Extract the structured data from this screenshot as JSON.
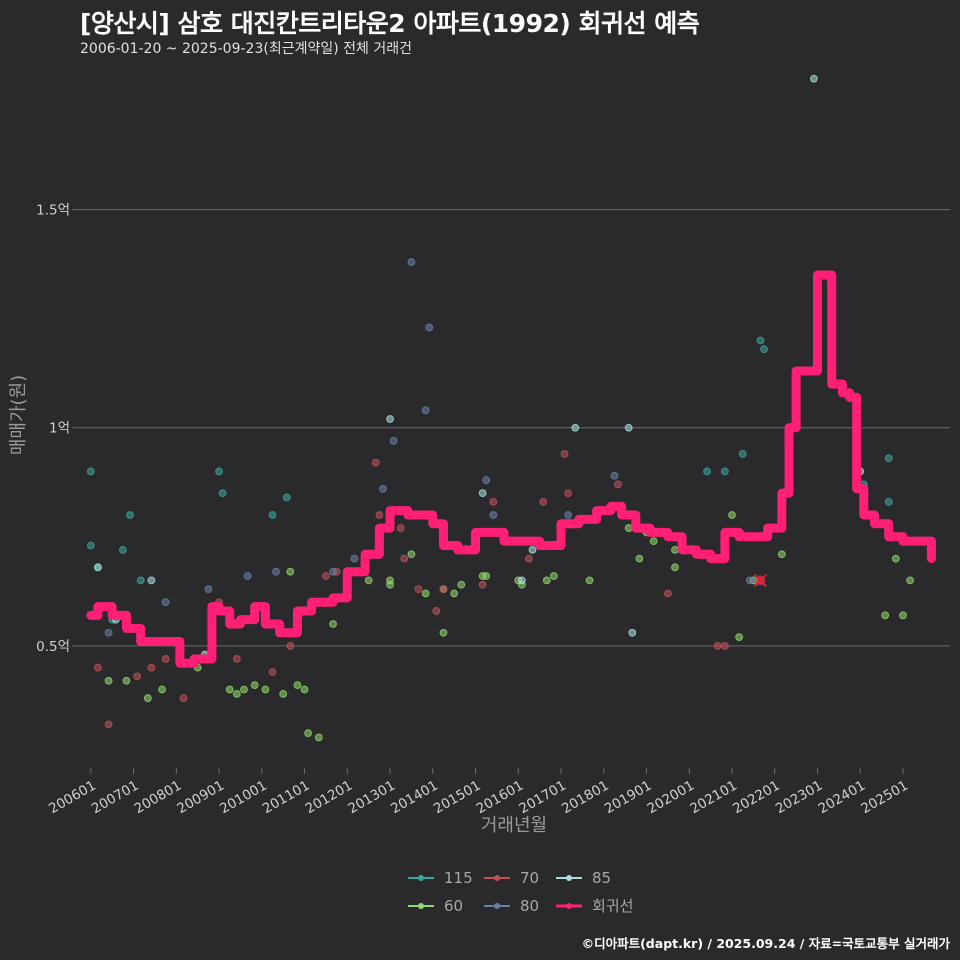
{
  "header": {
    "title": "[양산시] 삼호 대진칸트리타운2 아파트(1992) 회귀선 예측",
    "subtitle": "2006-01-20 ~ 2025-09-23(최근계약일) 전체 거래건"
  },
  "footer": {
    "credit": "©디아파트(dapt.kr) / 2025.09.24 / 자료=국토교통부 실거래가"
  },
  "colors": {
    "background": "#2a2a2c",
    "grid": "#6a6a6a",
    "regression": "#ff1f74",
    "115": "#3aa6a0",
    "60": "#8fd86a",
    "70": "#c0525a",
    "80": "#6a7fa8",
    "85": "#a9dede"
  },
  "chart_data": {
    "type": "scatter",
    "title": "[양산시] 삼호 대진칸트리타운2 아파트(1992) 회귀선 예측",
    "xlabel": "거래년월",
    "ylabel": "매매가(원)",
    "x_range": [
      2005.7,
      2026.1
    ],
    "ylim": [
      0.22,
      1.82
    ],
    "y_unit": "억",
    "y_ticks": [
      {
        "value": 0.5,
        "label": "0.5억"
      },
      {
        "value": 1.0,
        "label": "1억"
      },
      {
        "value": 1.5,
        "label": "1.5억"
      }
    ],
    "x_ticks": [
      "200601",
      "200701",
      "200801",
      "200901",
      "201001",
      "201101",
      "201201",
      "201301",
      "201401",
      "201501",
      "201601",
      "201701",
      "201801",
      "201901",
      "202001",
      "202101",
      "202201",
      "202301",
      "202401",
      "202501"
    ],
    "grid": true,
    "legend_position": "bottom",
    "legend": [
      {
        "name": "115",
        "color": "#3aa6a0",
        "kind": "point"
      },
      {
        "name": "70",
        "color": "#c0525a",
        "kind": "point"
      },
      {
        "name": "85",
        "color": "#a9dede",
        "kind": "point"
      },
      {
        "name": "60",
        "color": "#8fd86a",
        "kind": "point"
      },
      {
        "name": "80",
        "color": "#6a7fa8",
        "kind": "point"
      },
      {
        "name": "회귀선",
        "color": "#ff1f74",
        "kind": "line"
      }
    ],
    "series": [
      {
        "name": "115",
        "points": [
          {
            "x": "2006-01",
            "y": 0.9
          },
          {
            "x": "2006-01",
            "y": 0.73
          },
          {
            "x": "2006-03",
            "y": 0.68
          },
          {
            "x": "2006-07",
            "y": 0.56
          },
          {
            "x": "2006-10",
            "y": 0.72
          },
          {
            "x": "2006-12",
            "y": 0.8
          },
          {
            "x": "2007-03",
            "y": 0.65
          },
          {
            "x": "2009-01",
            "y": 0.9
          },
          {
            "x": "2009-02",
            "y": 0.85
          },
          {
            "x": "2010-04",
            "y": 0.8
          },
          {
            "x": "2010-08",
            "y": 0.84
          },
          {
            "x": "2020-06",
            "y": 0.9
          },
          {
            "x": "2020-11",
            "y": 0.9
          },
          {
            "x": "2021-04",
            "y": 0.94
          },
          {
            "x": "2021-09",
            "y": 1.2
          },
          {
            "x": "2021-10",
            "y": 1.18
          },
          {
            "x": "2023-12",
            "y": 0.9
          },
          {
            "x": "2024-02",
            "y": 0.87
          },
          {
            "x": "2024-09",
            "y": 0.93
          },
          {
            "x": "2024-09",
            "y": 0.83
          }
        ]
      },
      {
        "name": "60",
        "points": [
          {
            "x": "2006-06",
            "y": 0.42
          },
          {
            "x": "2006-11",
            "y": 0.42
          },
          {
            "x": "2007-05",
            "y": 0.38
          },
          {
            "x": "2007-09",
            "y": 0.4
          },
          {
            "x": "2008-07",
            "y": 0.45
          },
          {
            "x": "2009-04",
            "y": 0.4
          },
          {
            "x": "2009-06",
            "y": 0.39
          },
          {
            "x": "2009-08",
            "y": 0.4
          },
          {
            "x": "2009-11",
            "y": 0.41
          },
          {
            "x": "2010-02",
            "y": 0.4
          },
          {
            "x": "2010-07",
            "y": 0.39
          },
          {
            "x": "2010-09",
            "y": 0.67
          },
          {
            "x": "2010-11",
            "y": 0.41
          },
          {
            "x": "2011-01",
            "y": 0.4
          },
          {
            "x": "2011-02",
            "y": 0.3
          },
          {
            "x": "2011-05",
            "y": 0.29
          },
          {
            "x": "2011-09",
            "y": 0.55
          },
          {
            "x": "2012-01",
            "y": 0.62
          },
          {
            "x": "2012-07",
            "y": 0.65
          },
          {
            "x": "2013-01",
            "y": 0.64
          },
          {
            "x": "2013-01",
            "y": 0.65
          },
          {
            "x": "2013-07",
            "y": 0.71
          },
          {
            "x": "2013-11",
            "y": 0.62
          },
          {
            "x": "2014-04",
            "y": 0.53
          },
          {
            "x": "2014-04",
            "y": 0.63
          },
          {
            "x": "2014-07",
            "y": 0.62
          },
          {
            "x": "2014-09",
            "y": 0.64
          },
          {
            "x": "2015-03",
            "y": 0.66
          },
          {
            "x": "2015-04",
            "y": 0.66
          },
          {
            "x": "2016-01",
            "y": 0.65
          },
          {
            "x": "2016-02",
            "y": 0.64
          },
          {
            "x": "2016-09",
            "y": 0.65
          },
          {
            "x": "2016-11",
            "y": 0.66
          },
          {
            "x": "2017-09",
            "y": 0.65
          },
          {
            "x": "2018-08",
            "y": 0.77
          },
          {
            "x": "2018-11",
            "y": 0.7
          },
          {
            "x": "2019-01",
            "y": 0.76
          },
          {
            "x": "2019-03",
            "y": 0.74
          },
          {
            "x": "2019-09",
            "y": 0.68
          },
          {
            "x": "2019-09",
            "y": 0.72
          },
          {
            "x": "2021-01",
            "y": 0.8
          },
          {
            "x": "2021-03",
            "y": 0.52
          },
          {
            "x": "2021-07",
            "y": 0.65
          },
          {
            "x": "2021-11",
            "y": 0.75
          },
          {
            "x": "2022-03",
            "y": 0.71
          },
          {
            "x": "2024-08",
            "y": 0.57
          },
          {
            "x": "2024-11",
            "y": 0.7
          },
          {
            "x": "2025-01",
            "y": 0.57
          },
          {
            "x": "2025-03",
            "y": 0.65
          }
        ]
      },
      {
        "name": "70",
        "points": [
          {
            "x": "2006-03",
            "y": 0.45
          },
          {
            "x": "2006-06",
            "y": 0.32
          },
          {
            "x": "2007-02",
            "y": 0.43
          },
          {
            "x": "2007-06",
            "y": 0.45
          },
          {
            "x": "2007-10",
            "y": 0.47
          },
          {
            "x": "2008-03",
            "y": 0.38
          },
          {
            "x": "2009-01",
            "y": 0.6
          },
          {
            "x": "2009-06",
            "y": 0.47
          },
          {
            "x": "2010-04",
            "y": 0.44
          },
          {
            "x": "2010-09",
            "y": 0.5
          },
          {
            "x": "2011-07",
            "y": 0.66
          },
          {
            "x": "2011-10",
            "y": 0.67
          },
          {
            "x": "2012-10",
            "y": 0.8
          },
          {
            "x": "2012-09",
            "y": 0.92
          },
          {
            "x": "2013-04",
            "y": 0.77
          },
          {
            "x": "2013-05",
            "y": 0.7
          },
          {
            "x": "2013-09",
            "y": 0.63
          },
          {
            "x": "2014-02",
            "y": 0.58
          },
          {
            "x": "2014-04",
            "y": 0.63
          },
          {
            "x": "2015-03",
            "y": 0.64
          },
          {
            "x": "2015-06",
            "y": 0.83
          },
          {
            "x": "2016-04",
            "y": 0.7
          },
          {
            "x": "2016-08",
            "y": 0.83
          },
          {
            "x": "2017-02",
            "y": 0.94
          },
          {
            "x": "2017-03",
            "y": 0.85
          },
          {
            "x": "2018-05",
            "y": 0.87
          },
          {
            "x": "2019-07",
            "y": 0.62
          },
          {
            "x": "2020-09",
            "y": 0.5
          },
          {
            "x": "2020-11",
            "y": 0.5
          },
          {
            "x": "2021-09",
            "y": 0.65
          }
        ]
      },
      {
        "name": "80",
        "points": [
          {
            "x": "2006-06",
            "y": 0.53
          },
          {
            "x": "2007-10",
            "y": 0.6
          },
          {
            "x": "2008-10",
            "y": 0.63
          },
          {
            "x": "2009-09",
            "y": 0.66
          },
          {
            "x": "2010-05",
            "y": 0.67
          },
          {
            "x": "2011-09",
            "y": 0.67
          },
          {
            "x": "2012-03",
            "y": 0.7
          },
          {
            "x": "2012-11",
            "y": 0.86
          },
          {
            "x": "2013-02",
            "y": 0.97
          },
          {
            "x": "2013-07",
            "y": 1.38
          },
          {
            "x": "2013-11",
            "y": 1.04
          },
          {
            "x": "2013-12",
            "y": 1.23
          },
          {
            "x": "2015-04",
            "y": 0.88
          },
          {
            "x": "2015-06",
            "y": 0.8
          },
          {
            "x": "2017-03",
            "y": 0.8
          },
          {
            "x": "2018-04",
            "y": 0.89
          },
          {
            "x": "2021-06",
            "y": 0.65
          }
        ]
      },
      {
        "name": "85",
        "points": [
          {
            "x": "2006-03",
            "y": 0.68
          },
          {
            "x": "2006-08",
            "y": 0.56
          },
          {
            "x": "2007-06",
            "y": 0.65
          },
          {
            "x": "2008-09",
            "y": 0.48
          },
          {
            "x": "2013-01",
            "y": 1.02
          },
          {
            "x": "2013-01",
            "y": 0.8
          },
          {
            "x": "2015-03",
            "y": 0.85
          },
          {
            "x": "2016-02",
            "y": 0.65
          },
          {
            "x": "2016-05",
            "y": 0.72
          },
          {
            "x": "2017-05",
            "y": 1.0
          },
          {
            "x": "2018-08",
            "y": 1.0
          },
          {
            "x": "2018-09",
            "y": 0.53
          },
          {
            "x": "2022-12",
            "y": 1.8
          },
          {
            "x": "2024-01",
            "y": 0.9
          }
        ]
      }
    ],
    "regression": {
      "name": "회귀선",
      "points": [
        {
          "x": "2006-01",
          "y": 0.57
        },
        {
          "x": "2006-03",
          "y": 0.59
        },
        {
          "x": "2006-07",
          "y": 0.57
        },
        {
          "x": "2006-11",
          "y": 0.54
        },
        {
          "x": "2007-03",
          "y": 0.51
        },
        {
          "x": "2007-09",
          "y": 0.51
        },
        {
          "x": "2008-02",
          "y": 0.46
        },
        {
          "x": "2008-06",
          "y": 0.47
        },
        {
          "x": "2008-11",
          "y": 0.59
        },
        {
          "x": "2009-01",
          "y": 0.58
        },
        {
          "x": "2009-04",
          "y": 0.55
        },
        {
          "x": "2009-07",
          "y": 0.56
        },
        {
          "x": "2009-11",
          "y": 0.59
        },
        {
          "x": "2010-02",
          "y": 0.55
        },
        {
          "x": "2010-06",
          "y": 0.53
        },
        {
          "x": "2010-11",
          "y": 0.58
        },
        {
          "x": "2011-03",
          "y": 0.6
        },
        {
          "x": "2011-09",
          "y": 0.61
        },
        {
          "x": "2012-01",
          "y": 0.67
        },
        {
          "x": "2012-06",
          "y": 0.71
        },
        {
          "x": "2012-10",
          "y": 0.77
        },
        {
          "x": "2013-01",
          "y": 0.81
        },
        {
          "x": "2013-06",
          "y": 0.8
        },
        {
          "x": "2013-10",
          "y": 0.8
        },
        {
          "x": "2014-01",
          "y": 0.78
        },
        {
          "x": "2014-04",
          "y": 0.73
        },
        {
          "x": "2014-08",
          "y": 0.72
        },
        {
          "x": "2015-01",
          "y": 0.76
        },
        {
          "x": "2015-06",
          "y": 0.76
        },
        {
          "x": "2015-09",
          "y": 0.74
        },
        {
          "x": "2016-01",
          "y": 0.74
        },
        {
          "x": "2016-07",
          "y": 0.73
        },
        {
          "x": "2017-01",
          "y": 0.78
        },
        {
          "x": "2017-06",
          "y": 0.79
        },
        {
          "x": "2017-11",
          "y": 0.81
        },
        {
          "x": "2018-03",
          "y": 0.82
        },
        {
          "x": "2018-06",
          "y": 0.8
        },
        {
          "x": "2018-10",
          "y": 0.77
        },
        {
          "x": "2019-02",
          "y": 0.76
        },
        {
          "x": "2019-07",
          "y": 0.75
        },
        {
          "x": "2019-11",
          "y": 0.72
        },
        {
          "x": "2020-03",
          "y": 0.71
        },
        {
          "x": "2020-07",
          "y": 0.7
        },
        {
          "x": "2020-11",
          "y": 0.76
        },
        {
          "x": "2021-03",
          "y": 0.75
        },
        {
          "x": "2021-07",
          "y": 0.75
        },
        {
          "x": "2021-11",
          "y": 0.77
        },
        {
          "x": "2022-03",
          "y": 0.85
        },
        {
          "x": "2022-05",
          "y": 1.0
        },
        {
          "x": "2022-07",
          "y": 1.13
        },
        {
          "x": "2022-11",
          "y": 1.13
        },
        {
          "x": "2023-01",
          "y": 1.35
        },
        {
          "x": "2023-03",
          "y": 1.35
        },
        {
          "x": "2023-05",
          "y": 1.1
        },
        {
          "x": "2023-08",
          "y": 1.08
        },
        {
          "x": "2023-10",
          "y": 1.07
        },
        {
          "x": "2023-12",
          "y": 0.86
        },
        {
          "x": "2024-02",
          "y": 0.8
        },
        {
          "x": "2024-05",
          "y": 0.78
        },
        {
          "x": "2024-09",
          "y": 0.75
        },
        {
          "x": "2025-01",
          "y": 0.74
        },
        {
          "x": "2025-06",
          "y": 0.74
        },
        {
          "x": "2025-09",
          "y": 0.7
        }
      ]
    },
    "marker": {
      "x": "2021-09",
      "y": 0.65,
      "symbol": "x"
    }
  }
}
